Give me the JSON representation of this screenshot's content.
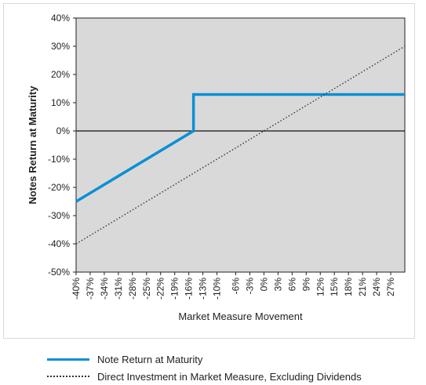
{
  "chart_data": {
    "type": "line",
    "xlabel": "Market Measure Movement",
    "ylabel": "Notes Return at Maturity",
    "xlim": [
      -40,
      30
    ],
    "ylim": [
      -50,
      40
    ],
    "x_ticks": [
      -40,
      -37,
      -34,
      -31,
      -28,
      -25,
      -22,
      -19,
      -16,
      -13,
      -10,
      -6,
      -3,
      0,
      3,
      6,
      9,
      12,
      15,
      18,
      21,
      24,
      27
    ],
    "x_tick_labels": [
      "-40%",
      "-37%",
      "-34%",
      "-31%",
      "-28%",
      "-25%",
      "-22%",
      "-19%",
      "-16%",
      "-13%",
      "-10%",
      "-6%",
      "-3%",
      "0%",
      "3%",
      "6%",
      "9%",
      "12%",
      "15%",
      "18%",
      "21%",
      "24%",
      "27%"
    ],
    "y_ticks": [
      40,
      30,
      20,
      10,
      0,
      -10,
      -20,
      -30,
      -40,
      -50
    ],
    "y_tick_labels": [
      "40%",
      "30%",
      "20%",
      "10%",
      "0%",
      "-10%",
      "-20%",
      "-30%",
      "-40%",
      "-50%"
    ],
    "grid": false,
    "legend_position": "bottom",
    "series": [
      {
        "name": "Note Return at Maturity",
        "color": "#0a8fd6",
        "style": "solid",
        "points": [
          [
            -40,
            -25
          ],
          [
            -15,
            0
          ],
          [
            -15,
            12.9
          ],
          [
            30,
            12.9
          ]
        ]
      },
      {
        "name": "Direct Investment in Market Measure, Excluding Dividends",
        "color": "#333333",
        "style": "dotted",
        "points": [
          [
            -40,
            -40
          ],
          [
            30,
            30
          ]
        ]
      }
    ],
    "plot_background": "#d9d9d9"
  }
}
